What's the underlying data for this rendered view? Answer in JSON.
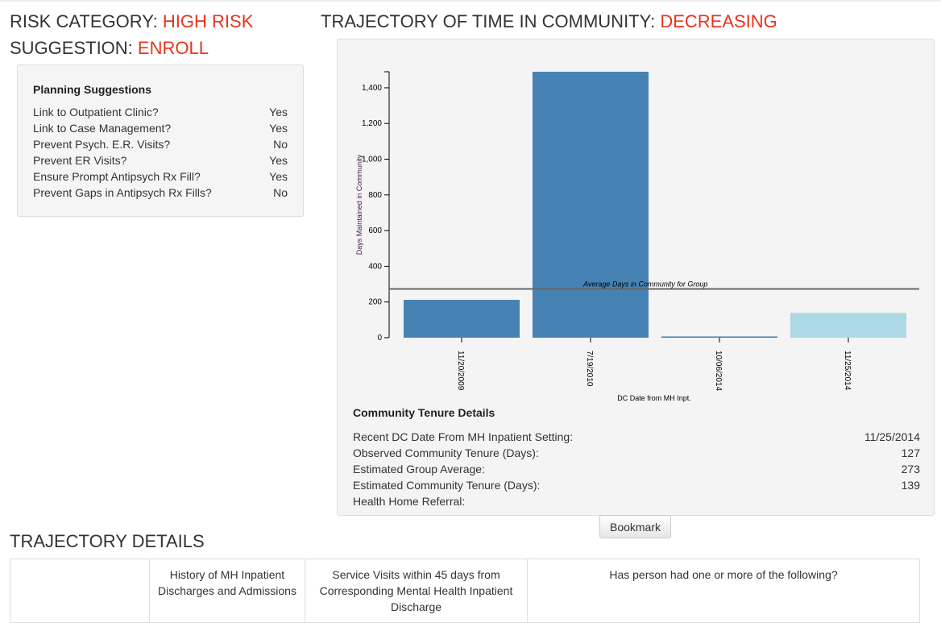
{
  "header": {
    "risk_label": "RISK CATEGORY: ",
    "risk_value": "HIGH RISK",
    "suggestion_label": "SUGGESTION: ",
    "suggestion_value": "ENROLL",
    "trajectory_label": "TRAJECTORY OF TIME IN COMMUNITY: ",
    "trajectory_value": "DECREASING"
  },
  "planning": {
    "title": "Planning Suggestions",
    "items": [
      {
        "label": "Link to Outpatient Clinic?",
        "value": "Yes"
      },
      {
        "label": "Link to Case Management?",
        "value": "Yes"
      },
      {
        "label": "Prevent Psych. E.R. Visits?",
        "value": "No"
      },
      {
        "label": "Prevent ER Visits?",
        "value": "Yes"
      },
      {
        "label": "Ensure Prompt Antipsych Rx Fill?",
        "value": "Yes"
      },
      {
        "label": "Prevent Gaps in Antipsych Rx Fills?",
        "value": "No"
      }
    ]
  },
  "chart_data": {
    "type": "bar",
    "categories": [
      "11/20/2009",
      "7/19/2010",
      "10/06/2014",
      "11/25/2014"
    ],
    "values": [
      212,
      1490,
      7,
      139
    ],
    "colors": [
      "#4682b4",
      "#4682b4",
      "#4682b4",
      "#add8e6"
    ],
    "xlabel": "DC Date from MH Inpt.",
    "ylabel": "Days Maintained in Community",
    "ylim": [
      0,
      1490
    ],
    "yticks": [
      0,
      200,
      400,
      600,
      800,
      1000,
      1200,
      1400
    ],
    "ytick_labels": [
      "0",
      "200",
      "400",
      "600",
      "800",
      "1,000",
      "1,200",
      "1,400"
    ],
    "reference_line": {
      "value": 273,
      "label": "Average Days in Community for Group"
    }
  },
  "tenure": {
    "title": "Community Tenure Details",
    "items": [
      {
        "label": "Recent DC Date From MH Inpatient Setting:",
        "value": "11/25/2014"
      },
      {
        "label": "Observed Community Tenure (Days):",
        "value": "127"
      },
      {
        "label": "Estimated Group Average:",
        "value": "273"
      },
      {
        "label": "Estimated Community Tenure (Days):",
        "value": "139"
      },
      {
        "label": "Health Home Referral:",
        "value": ""
      }
    ]
  },
  "bookmark_label": "Bookmark",
  "trajectory_details": {
    "title": "TRAJECTORY DETAILS",
    "columns": [
      "",
      "History of MH Inpatient Discharges and Admissions",
      "Service Visits within 45 days from Corresponding Mental Health Inpatient Discharge",
      "Has person had one or more of the following?"
    ]
  }
}
